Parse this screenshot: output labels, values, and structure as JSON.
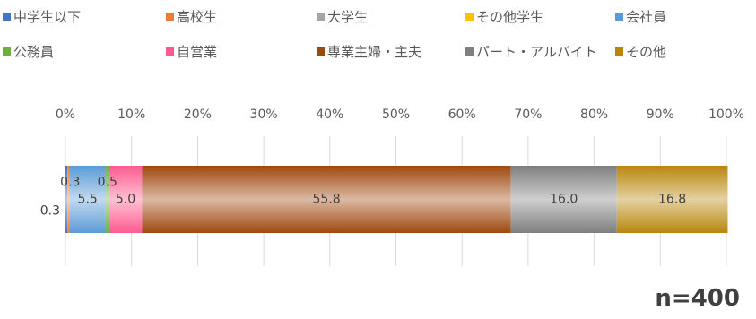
{
  "chart_data": {
    "type": "bar",
    "orientation": "horizontal",
    "stacked": "percent",
    "categories": [
      ""
    ],
    "series": [
      {
        "name": "中学生以下",
        "values": [
          0.3
        ],
        "label": "0.3",
        "color": "#4472c4"
      },
      {
        "name": "高校生",
        "values": [
          0.3
        ],
        "label": "0.3",
        "color": "#ed7d31"
      },
      {
        "name": "大学生",
        "values": [
          0.0
        ],
        "label": "",
        "color": "#a5a5a5"
      },
      {
        "name": "その他学生",
        "values": [
          0.0
        ],
        "label": "",
        "color": "#ffc000"
      },
      {
        "name": "会社員",
        "values": [
          5.5
        ],
        "label": "5.5",
        "color": "#5b9bd5"
      },
      {
        "name": "公務員",
        "values": [
          0.5
        ],
        "label": "0.5",
        "color": "#70ad47"
      },
      {
        "name": "自営業",
        "values": [
          5.0
        ],
        "label": "5.0",
        "color": "#ff5b8f"
      },
      {
        "name": "専業主婦・主夫",
        "values": [
          55.8
        ],
        "label": "55.8",
        "color": "#9e480e"
      },
      {
        "name": "パート・アルバイト",
        "values": [
          16.0
        ],
        "label": "16.0",
        "color": "#7f7f7f"
      },
      {
        "name": "その他",
        "values": [
          16.8
        ],
        "label": "16.8",
        "color": "#b8860b"
      }
    ],
    "xlim": [
      0,
      100
    ],
    "xticks": [
      "0%",
      "10%",
      "20%",
      "30%",
      "40%",
      "50%",
      "60%",
      "70%",
      "80%",
      "90%",
      "100%"
    ],
    "legend_position": "top",
    "grid": true
  },
  "n_label": "n=400"
}
